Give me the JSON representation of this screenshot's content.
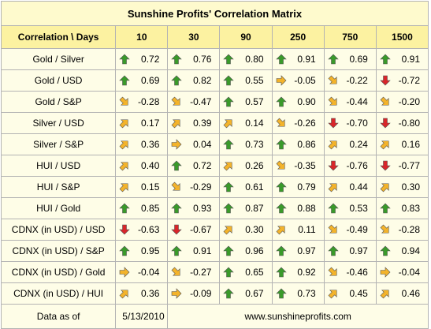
{
  "title": "Sunshine Profits' Correlation Matrix",
  "header": {
    "corner": "Correlation \\ Days",
    "periods": [
      "10",
      "30",
      "90",
      "250",
      "750",
      "1500"
    ]
  },
  "rows": [
    {
      "label": "Gold / Silver",
      "cells": [
        {
          "value": "0.72",
          "arrow": "up-green"
        },
        {
          "value": "0.76",
          "arrow": "up-green"
        },
        {
          "value": "0.80",
          "arrow": "up-green"
        },
        {
          "value": "0.91",
          "arrow": "up-green"
        },
        {
          "value": "0.69",
          "arrow": "up-green"
        },
        {
          "value": "0.91",
          "arrow": "up-green"
        }
      ]
    },
    {
      "label": "Gold / USD",
      "cells": [
        {
          "value": "0.69",
          "arrow": "up-green"
        },
        {
          "value": "0.82",
          "arrow": "up-green"
        },
        {
          "value": "0.55",
          "arrow": "up-green"
        },
        {
          "value": "-0.05",
          "arrow": "right-orange"
        },
        {
          "value": "-0.22",
          "arrow": "down-right-orange"
        },
        {
          "value": "-0.72",
          "arrow": "down-red"
        }
      ]
    },
    {
      "label": "Gold / S&P",
      "cells": [
        {
          "value": "-0.28",
          "arrow": "down-right-orange"
        },
        {
          "value": "-0.47",
          "arrow": "down-right-orange"
        },
        {
          "value": "0.57",
          "arrow": "up-green"
        },
        {
          "value": "0.90",
          "arrow": "up-green"
        },
        {
          "value": "-0.44",
          "arrow": "down-right-orange"
        },
        {
          "value": "-0.20",
          "arrow": "down-right-orange"
        }
      ]
    },
    {
      "label": "Silver / USD",
      "cells": [
        {
          "value": "0.17",
          "arrow": "up-right-orange"
        },
        {
          "value": "0.39",
          "arrow": "up-right-orange"
        },
        {
          "value": "0.14",
          "arrow": "up-right-orange"
        },
        {
          "value": "-0.26",
          "arrow": "down-right-orange"
        },
        {
          "value": "-0.70",
          "arrow": "down-red"
        },
        {
          "value": "-0.80",
          "arrow": "down-red"
        }
      ]
    },
    {
      "label": "Silver / S&P",
      "cells": [
        {
          "value": "0.36",
          "arrow": "up-right-orange"
        },
        {
          "value": "0.04",
          "arrow": "right-orange"
        },
        {
          "value": "0.73",
          "arrow": "up-green"
        },
        {
          "value": "0.86",
          "arrow": "up-green"
        },
        {
          "value": "0.24",
          "arrow": "up-right-orange"
        },
        {
          "value": "0.16",
          "arrow": "up-right-orange"
        }
      ]
    },
    {
      "label": "HUI / USD",
      "cells": [
        {
          "value": "0.40",
          "arrow": "up-right-orange"
        },
        {
          "value": "0.72",
          "arrow": "up-green"
        },
        {
          "value": "0.26",
          "arrow": "up-right-orange"
        },
        {
          "value": "-0.35",
          "arrow": "down-right-orange"
        },
        {
          "value": "-0.76",
          "arrow": "down-red"
        },
        {
          "value": "-0.77",
          "arrow": "down-red"
        }
      ]
    },
    {
      "label": "HUI / S&P",
      "cells": [
        {
          "value": "0.15",
          "arrow": "up-right-orange"
        },
        {
          "value": "-0.29",
          "arrow": "down-right-orange"
        },
        {
          "value": "0.61",
          "arrow": "up-green"
        },
        {
          "value": "0.79",
          "arrow": "up-green"
        },
        {
          "value": "0.44",
          "arrow": "up-right-orange"
        },
        {
          "value": "0.30",
          "arrow": "up-right-orange"
        }
      ]
    },
    {
      "label": "HUI / Gold",
      "cells": [
        {
          "value": "0.85",
          "arrow": "up-green"
        },
        {
          "value": "0.93",
          "arrow": "up-green"
        },
        {
          "value": "0.87",
          "arrow": "up-green"
        },
        {
          "value": "0.88",
          "arrow": "up-green"
        },
        {
          "value": "0.53",
          "arrow": "up-green"
        },
        {
          "value": "0.83",
          "arrow": "up-green"
        }
      ]
    },
    {
      "label": "CDNX (in USD) / USD",
      "cells": [
        {
          "value": "-0.63",
          "arrow": "down-red"
        },
        {
          "value": "-0.67",
          "arrow": "down-red"
        },
        {
          "value": "0.30",
          "arrow": "up-right-orange"
        },
        {
          "value": "0.11",
          "arrow": "up-right-orange"
        },
        {
          "value": "-0.49",
          "arrow": "down-right-orange"
        },
        {
          "value": "-0.28",
          "arrow": "down-right-orange"
        }
      ]
    },
    {
      "label": "CDNX (in USD) / S&P",
      "cells": [
        {
          "value": "0.95",
          "arrow": "up-green"
        },
        {
          "value": "0.91",
          "arrow": "up-green"
        },
        {
          "value": "0.96",
          "arrow": "up-green"
        },
        {
          "value": "0.97",
          "arrow": "up-green"
        },
        {
          "value": "0.97",
          "arrow": "up-green"
        },
        {
          "value": "0.94",
          "arrow": "up-green"
        }
      ]
    },
    {
      "label": "CDNX (in USD) / Gold",
      "cells": [
        {
          "value": "-0.04",
          "arrow": "right-orange"
        },
        {
          "value": "-0.27",
          "arrow": "down-right-orange"
        },
        {
          "value": "0.65",
          "arrow": "up-green"
        },
        {
          "value": "0.92",
          "arrow": "up-green"
        },
        {
          "value": "-0.46",
          "arrow": "down-right-orange"
        },
        {
          "value": "-0.04",
          "arrow": "right-orange"
        }
      ]
    },
    {
      "label": "CDNX (in USD) / HUI",
      "cells": [
        {
          "value": "0.36",
          "arrow": "up-right-orange"
        },
        {
          "value": "-0.09",
          "arrow": "right-orange"
        },
        {
          "value": "0.67",
          "arrow": "up-green"
        },
        {
          "value": "0.73",
          "arrow": "up-green"
        },
        {
          "value": "0.45",
          "arrow": "up-right-orange"
        },
        {
          "value": "0.46",
          "arrow": "up-right-orange"
        }
      ]
    }
  ],
  "footer": {
    "label": "Data as of",
    "date": "5/13/2010",
    "website": "www.sunshineprofits.com"
  },
  "colors": {
    "title_bg": "#fefacd",
    "header_bg": "#fcf2a1",
    "cell_bg": "#fefde7",
    "border": "#b3b3b3",
    "arrow_green": "#3a9a2a",
    "arrow_orange": "#f3b32b",
    "arrow_red": "#d8262a"
  }
}
